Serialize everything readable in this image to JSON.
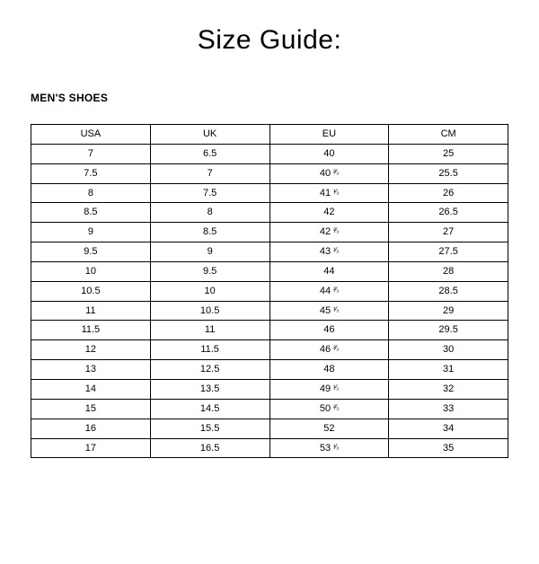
{
  "title": "Size Guide:",
  "subtitle": "MEN'S SHOES",
  "table": {
    "type": "table",
    "columns": [
      "USA",
      "UK",
      "EU",
      "CM"
    ],
    "rows": [
      [
        "7",
        "6.5",
        "40",
        "25"
      ],
      [
        "7.5",
        "7",
        "40 ²⁄₃",
        "25.5"
      ],
      [
        "8",
        "7.5",
        "41 ¹⁄₃",
        "26"
      ],
      [
        "8.5",
        "8",
        "42",
        "26.5"
      ],
      [
        "9",
        "8.5",
        "42 ²⁄₃",
        "27"
      ],
      [
        "9.5",
        "9",
        "43 ¹⁄₃",
        "27.5"
      ],
      [
        "10",
        "9.5",
        "44",
        "28"
      ],
      [
        "10.5",
        "10",
        "44 ²⁄₃",
        "28.5"
      ],
      [
        "11",
        "10.5",
        "45 ¹⁄₃",
        "29"
      ],
      [
        "11.5",
        "11",
        "46",
        "29.5"
      ],
      [
        "12",
        "11.5",
        "46 ²⁄₃",
        "30"
      ],
      [
        "13",
        "12.5",
        "48",
        "31"
      ],
      [
        "14",
        "13.5",
        "49 ¹⁄₃",
        "32"
      ],
      [
        "15",
        "14.5",
        "50 ²⁄₃",
        "33"
      ],
      [
        "16",
        "15.5",
        "52",
        "34"
      ],
      [
        "17",
        "16.5",
        "53 ¹⁄₃",
        "35"
      ]
    ],
    "border_color": "#000000",
    "background_color": "#ffffff",
    "header_fontsize": 11,
    "cell_fontsize": 11,
    "column_widths_pct": [
      25,
      25,
      25,
      25
    ],
    "text_align": "center"
  },
  "styles": {
    "title_fontsize": 30,
    "subtitle_fontsize": 12,
    "page_background": "#ffffff",
    "text_color": "#000000"
  }
}
